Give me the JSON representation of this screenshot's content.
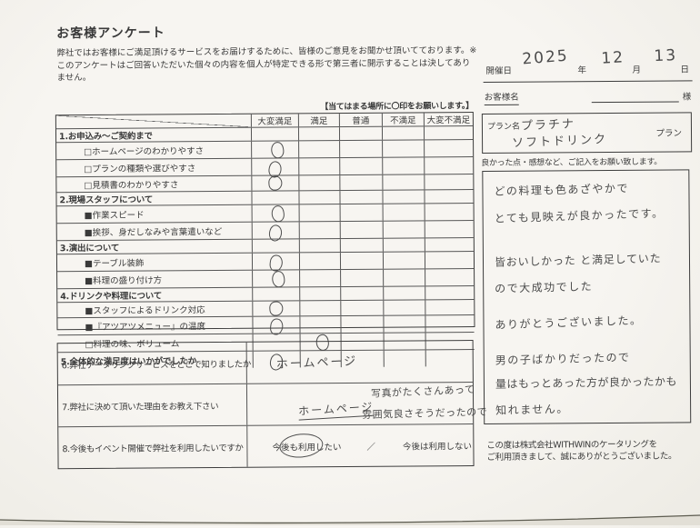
{
  "colors": {
    "paper": "#f6f4ef",
    "ink": "#3a3a3a",
    "handwriting": "#4c4c4c",
    "table_line": "#555555"
  },
  "page": {
    "title": "お客様アンケート",
    "intro": [
      "弊社ではお客様にご満足頂けるサービスをお届けするために、皆様のご意見をお聞かせ頂いてております。",
      "※このアンケートはご回答いただいた個々の内容を個人が特定できる形で第三者に開示することは決してありません。"
    ]
  },
  "date": {
    "label": "開催日",
    "year": "2025",
    "year_suffix": "年",
    "month": "12",
    "month_suffix": "月",
    "day": "13",
    "day_suffix": "日"
  },
  "customer": {
    "label": "お客様名",
    "value": "",
    "honorific": "様"
  },
  "plan": {
    "label": "プラン名",
    "line1": "プラチナ",
    "line2": "ソフトドリンク",
    "suffix": "プラン"
  },
  "ratings": {
    "note": "【当てはまる場所に〇印をお願いします。】",
    "columns": [
      "大変満足",
      "満足",
      "普通",
      "不満足",
      "大変不満足"
    ],
    "rows": [
      {
        "label": "1.お申込み～ご契約まで",
        "type": "section",
        "mark": null
      },
      {
        "label": "□ホームページのわかりやすさ",
        "type": "item",
        "mark": 0
      },
      {
        "label": "□プランの種類や選びやすさ",
        "type": "item",
        "mark": 0
      },
      {
        "label": "□見積書のわかりやすさ",
        "type": "item",
        "mark": 0
      },
      {
        "label": "2.現場スタッフについて",
        "type": "section",
        "mark": null
      },
      {
        "label": "■作業スピード",
        "type": "item",
        "mark": 0
      },
      {
        "label": "■挨拶、身だしなみや言葉遣いなど",
        "type": "item",
        "mark": 0
      },
      {
        "label": "3.演出について",
        "type": "section",
        "mark": null
      },
      {
        "label": "■テーブル装飾",
        "type": "item",
        "mark": 0
      },
      {
        "label": "■料理の盛り付け方",
        "type": "item",
        "mark": 0
      },
      {
        "label": "4.ドリンクや料理について",
        "type": "section",
        "mark": null
      },
      {
        "label": "■スタッフによるドリンク対応",
        "type": "item",
        "mark": 0
      },
      {
        "label": "■『アツアツメニュー』の温度",
        "type": "item",
        "mark": 0
      },
      {
        "label": "□料理の味、ボリューム",
        "type": "item",
        "mark": 1
      },
      {
        "label": "5.全体的な満足度はいかがでしたか",
        "type": "total",
        "mark": 0
      }
    ]
  },
  "questions": {
    "q6": {
      "label": "6.弊社ケータリングサービスをどこで知りましたか",
      "answer": "ホームページ"
    },
    "q7": {
      "label": "7.弊社に決めて頂いた理由をお教え下さい",
      "answer": "ホームページ",
      "note1": "写真がたくさんあって",
      "note2": "雰囲気良さそうだったので"
    },
    "q8": {
      "label": "8.今後もイベント開催で弊社を利用したいですか",
      "yes": "今後も利用したい",
      "separator": "／",
      "no": "今後は利用しない",
      "selected": "今後も利用したい"
    }
  },
  "feedback": {
    "label": "良かった点・感想など、ご記入をお願い致します。",
    "lines": [
      "どの料理も色あざやかで",
      "とても見映えが良かったです。",
      "皆おいしかった と満足していた",
      "ので大成功でした",
      "ありがとうございました。",
      "男の子ばかりだったので",
      "量はもっとあった方が良かったかも",
      "知れません。"
    ]
  },
  "footer": [
    "この度は株式会社WITHWINのケータリングを",
    "ご利用頂きまして、誠にありがとうございました。"
  ]
}
